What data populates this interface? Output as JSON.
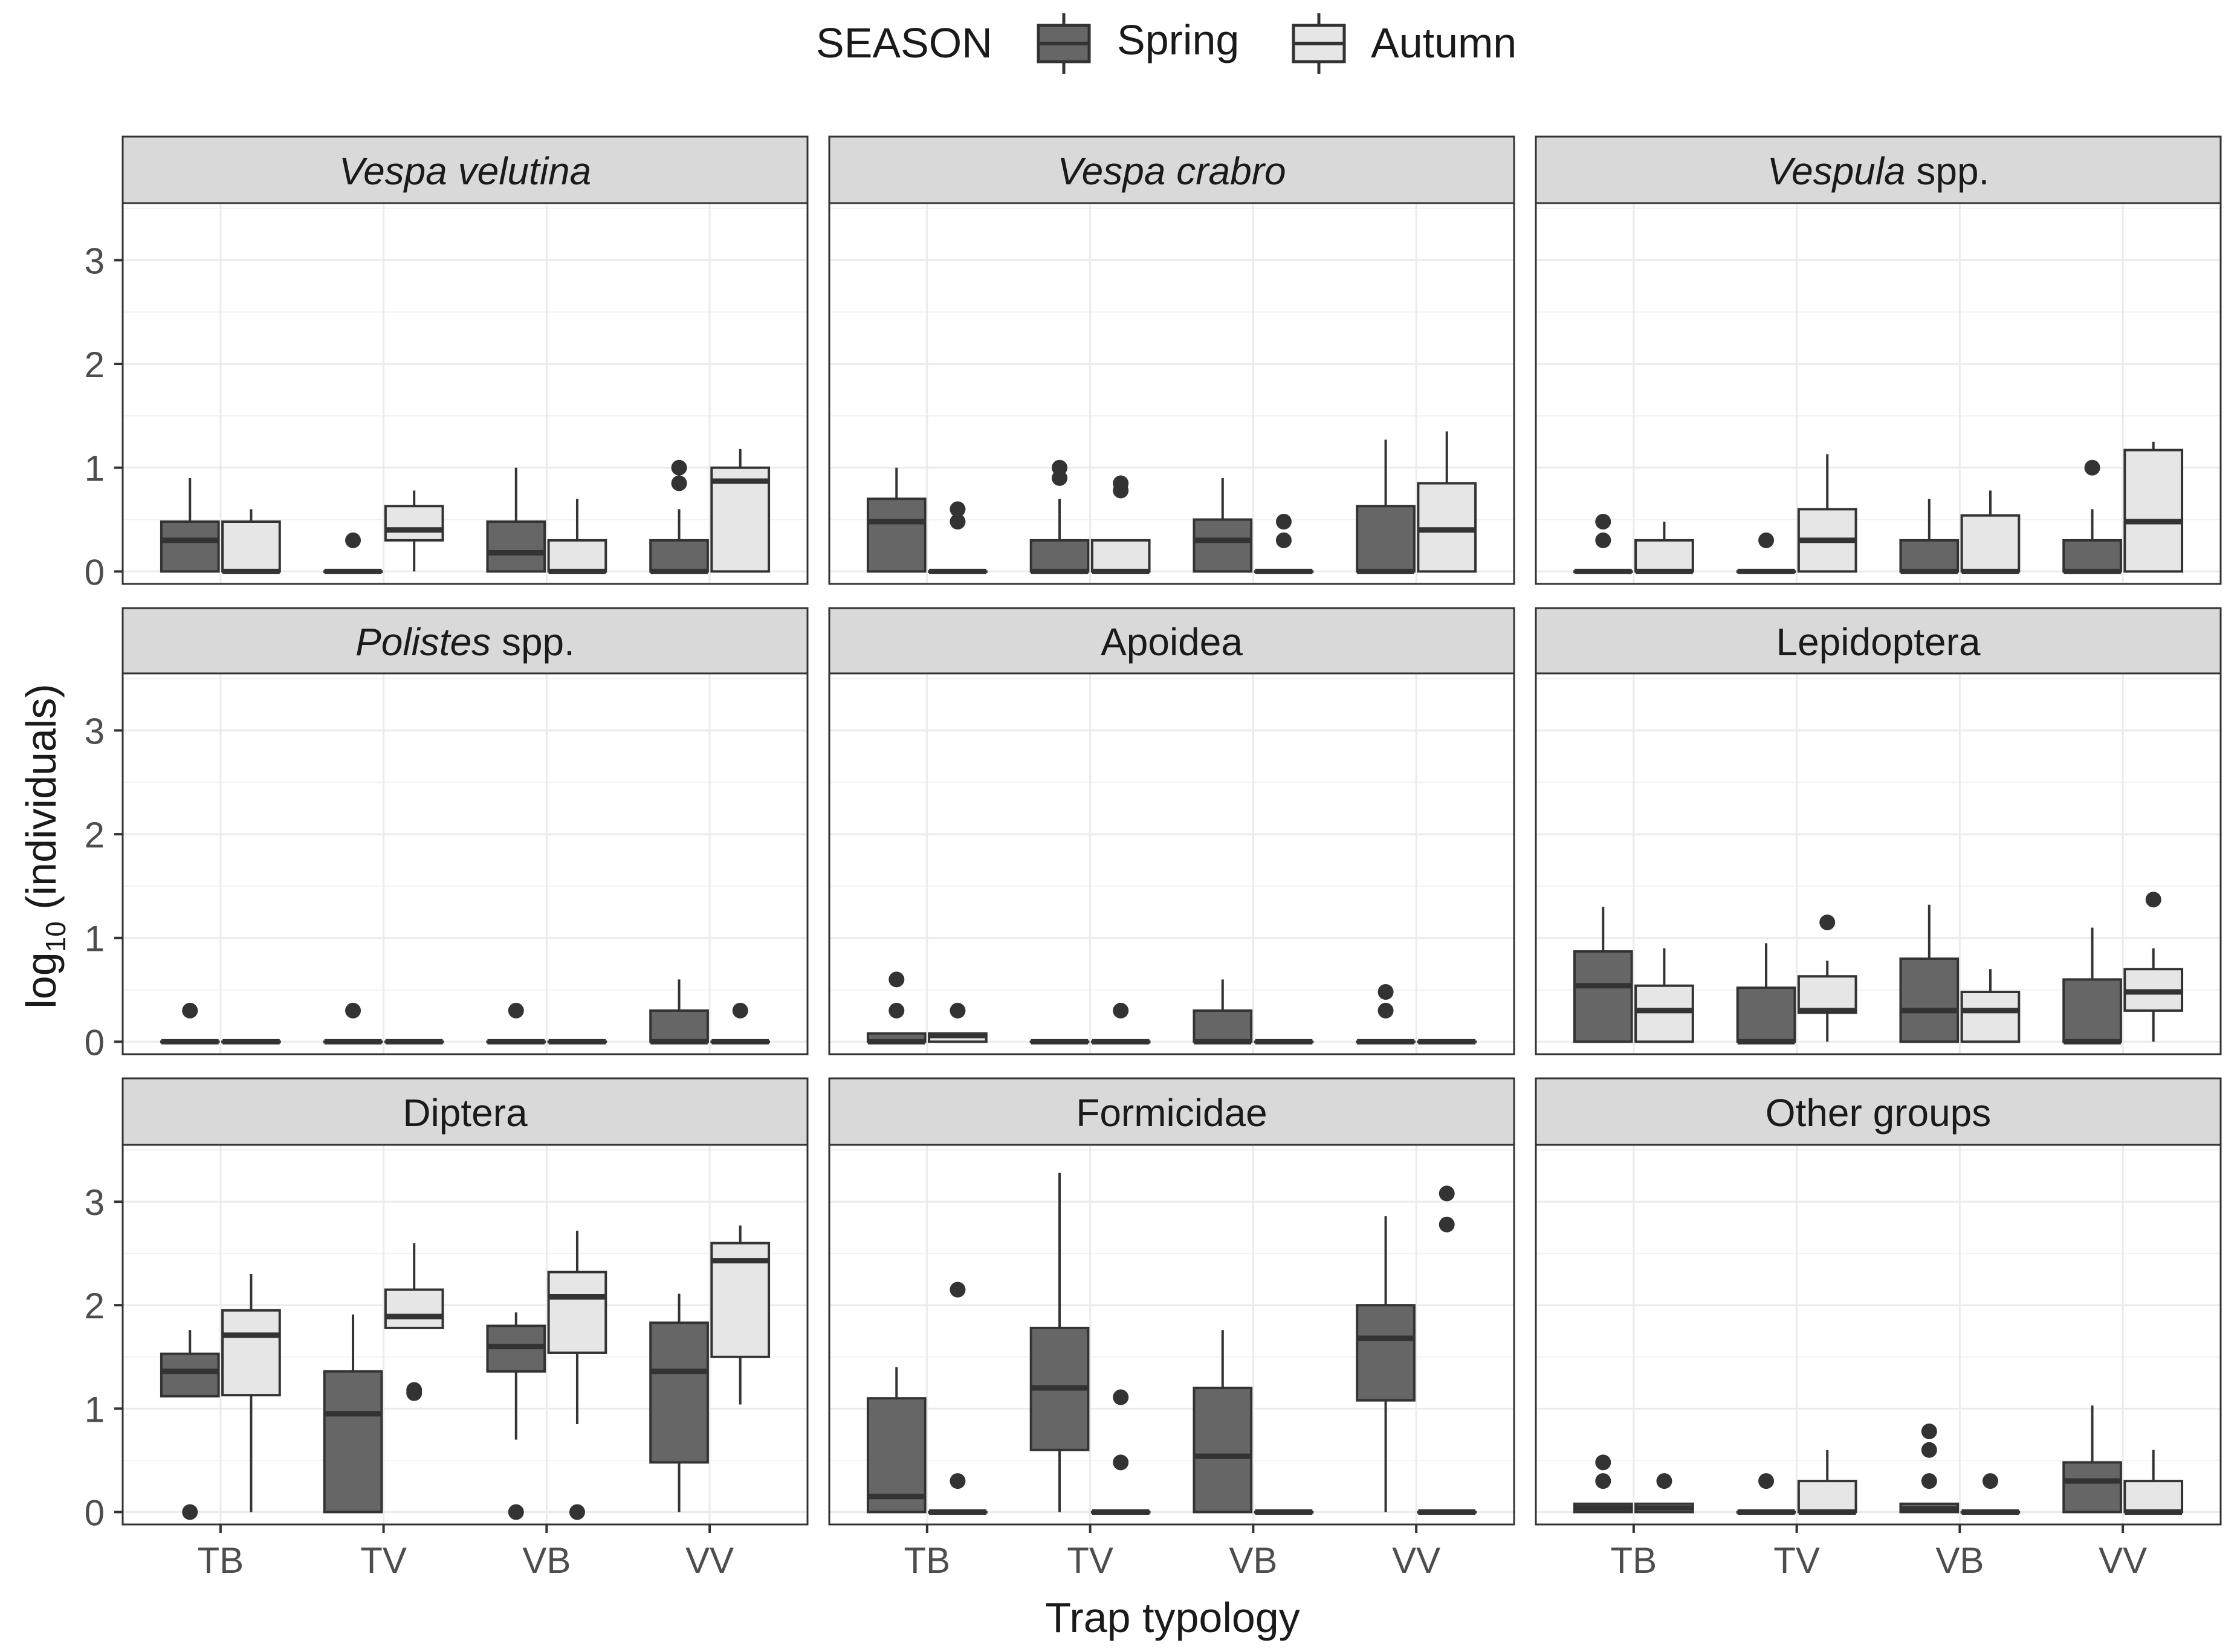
{
  "chart_data": {
    "type": "boxplot",
    "layout": "facet_wrap 3x3",
    "legend": {
      "title": "SEASON",
      "position": "top",
      "entries": [
        {
          "name": "Spring",
          "color": "#666666"
        },
        {
          "name": "Autumn",
          "color": "#e6e6e6"
        }
      ]
    },
    "xlabel": "Trap typology",
    "ylabel_main": "log",
    "ylabel_sub": "10",
    "ylabel_rest": " (individuals)",
    "categories": [
      "TB",
      "TV",
      "VB",
      "VV"
    ],
    "ylim": [
      -0.12,
      3.55
    ],
    "yticks": [
      0,
      1,
      2,
      3
    ],
    "grid": true,
    "facets": [
      {
        "title_italic": "Vespa velutina",
        "title_rest": "",
        "showX": false,
        "groups": [
          {
            "cat": "TB",
            "series": "Spring",
            "q1": 0,
            "med": 0.3,
            "q3": 0.48,
            "lo": 0,
            "hi": 0.9,
            "out": []
          },
          {
            "cat": "TB",
            "series": "Autumn",
            "q1": 0,
            "med": 0,
            "q3": 0.48,
            "lo": 0,
            "hi": 0.6,
            "out": []
          },
          {
            "cat": "TV",
            "series": "Spring",
            "q1": 0,
            "med": 0,
            "q3": 0,
            "lo": 0,
            "hi": 0,
            "out": [
              0.3
            ]
          },
          {
            "cat": "TV",
            "series": "Autumn",
            "q1": 0.3,
            "med": 0.4,
            "q3": 0.63,
            "lo": 0,
            "hi": 0.78,
            "out": []
          },
          {
            "cat": "VB",
            "series": "Spring",
            "q1": 0,
            "med": 0.18,
            "q3": 0.48,
            "lo": 0,
            "hi": 1.0,
            "out": []
          },
          {
            "cat": "VB",
            "series": "Autumn",
            "q1": 0,
            "med": 0,
            "q3": 0.3,
            "lo": 0,
            "hi": 0.7,
            "out": []
          },
          {
            "cat": "VV",
            "series": "Spring",
            "q1": 0,
            "med": 0,
            "q3": 0.3,
            "lo": 0,
            "hi": 0.6,
            "out": [
              0.85,
              1.0
            ]
          },
          {
            "cat": "VV",
            "series": "Autumn",
            "q1": 0,
            "med": 0.87,
            "q3": 1.0,
            "lo": 0,
            "hi": 1.18,
            "out": []
          }
        ]
      },
      {
        "title_italic": "Vespa crabro",
        "title_rest": "",
        "showX": false,
        "groups": [
          {
            "cat": "TB",
            "series": "Spring",
            "q1": 0,
            "med": 0.48,
            "q3": 0.7,
            "lo": 0,
            "hi": 1.0,
            "out": []
          },
          {
            "cat": "TB",
            "series": "Autumn",
            "q1": 0,
            "med": 0,
            "q3": 0,
            "lo": 0,
            "hi": 0,
            "out": [
              0.48,
              0.6
            ]
          },
          {
            "cat": "TV",
            "series": "Spring",
            "q1": 0,
            "med": 0,
            "q3": 0.3,
            "lo": 0,
            "hi": 0.7,
            "out": [
              0.9,
              1.0
            ]
          },
          {
            "cat": "TV",
            "series": "Autumn",
            "q1": 0,
            "med": 0,
            "q3": 0.3,
            "lo": 0,
            "hi": 0.3,
            "out": [
              0.78,
              0.85
            ]
          },
          {
            "cat": "VB",
            "series": "Spring",
            "q1": 0,
            "med": 0.3,
            "q3": 0.5,
            "lo": 0,
            "hi": 0.9,
            "out": []
          },
          {
            "cat": "VB",
            "series": "Autumn",
            "q1": 0,
            "med": 0,
            "q3": 0,
            "lo": 0,
            "hi": 0,
            "out": [
              0.3,
              0.48
            ]
          },
          {
            "cat": "VV",
            "series": "Spring",
            "q1": 0,
            "med": 0,
            "q3": 0.63,
            "lo": 0,
            "hi": 1.27,
            "out": []
          },
          {
            "cat": "VV",
            "series": "Autumn",
            "q1": 0,
            "med": 0.4,
            "q3": 0.85,
            "lo": 0,
            "hi": 1.35,
            "out": []
          }
        ]
      },
      {
        "title_italic": "Vespula",
        "title_rest": " spp.",
        "showX": false,
        "groups": [
          {
            "cat": "TB",
            "series": "Spring",
            "q1": 0,
            "med": 0,
            "q3": 0,
            "lo": 0,
            "hi": 0,
            "out": [
              0.3,
              0.48
            ]
          },
          {
            "cat": "TB",
            "series": "Autumn",
            "q1": 0,
            "med": 0,
            "q3": 0.3,
            "lo": 0,
            "hi": 0.48,
            "out": []
          },
          {
            "cat": "TV",
            "series": "Spring",
            "q1": 0,
            "med": 0,
            "q3": 0,
            "lo": 0,
            "hi": 0,
            "out": [
              0.3
            ]
          },
          {
            "cat": "TV",
            "series": "Autumn",
            "q1": 0,
            "med": 0.3,
            "q3": 0.6,
            "lo": 0,
            "hi": 1.13,
            "out": []
          },
          {
            "cat": "VB",
            "series": "Spring",
            "q1": 0,
            "med": 0,
            "q3": 0.3,
            "lo": 0,
            "hi": 0.7,
            "out": []
          },
          {
            "cat": "VB",
            "series": "Autumn",
            "q1": 0,
            "med": 0,
            "q3": 0.54,
            "lo": 0,
            "hi": 0.78,
            "out": []
          },
          {
            "cat": "VV",
            "series": "Spring",
            "q1": 0,
            "med": 0,
            "q3": 0.3,
            "lo": 0,
            "hi": 0.6,
            "out": [
              1.0
            ]
          },
          {
            "cat": "VV",
            "series": "Autumn",
            "q1": 0,
            "med": 0.48,
            "q3": 1.17,
            "lo": 0,
            "hi": 1.25,
            "out": []
          }
        ]
      },
      {
        "title_italic": "Polistes",
        "title_rest": " spp.",
        "showX": false,
        "groups": [
          {
            "cat": "TB",
            "series": "Spring",
            "q1": 0,
            "med": 0,
            "q3": 0,
            "lo": 0,
            "hi": 0,
            "out": [
              0.3
            ]
          },
          {
            "cat": "TB",
            "series": "Autumn",
            "q1": 0,
            "med": 0,
            "q3": 0,
            "lo": 0,
            "hi": 0,
            "out": []
          },
          {
            "cat": "TV",
            "series": "Spring",
            "q1": 0,
            "med": 0,
            "q3": 0,
            "lo": 0,
            "hi": 0,
            "out": [
              0.3
            ]
          },
          {
            "cat": "TV",
            "series": "Autumn",
            "q1": 0,
            "med": 0,
            "q3": 0,
            "lo": 0,
            "hi": 0,
            "out": []
          },
          {
            "cat": "VB",
            "series": "Spring",
            "q1": 0,
            "med": 0,
            "q3": 0,
            "lo": 0,
            "hi": 0,
            "out": [
              0.3
            ]
          },
          {
            "cat": "VB",
            "series": "Autumn",
            "q1": 0,
            "med": 0,
            "q3": 0,
            "lo": 0,
            "hi": 0,
            "out": []
          },
          {
            "cat": "VV",
            "series": "Spring",
            "q1": 0,
            "med": 0,
            "q3": 0.3,
            "lo": 0,
            "hi": 0.6,
            "out": []
          },
          {
            "cat": "VV",
            "series": "Autumn",
            "q1": 0,
            "med": 0,
            "q3": 0,
            "lo": 0,
            "hi": 0,
            "out": [
              0.3
            ]
          }
        ]
      },
      {
        "title_italic": "",
        "title_rest": "Apoidea",
        "showX": false,
        "groups": [
          {
            "cat": "TB",
            "series": "Spring",
            "q1": 0,
            "med": 0,
            "q3": 0.08,
            "lo": 0,
            "hi": 0.08,
            "out": [
              0.3,
              0.6
            ]
          },
          {
            "cat": "TB",
            "series": "Autumn",
            "q1": 0,
            "med": 0.06,
            "q3": 0.08,
            "lo": 0,
            "hi": 0.08,
            "out": [
              0.3
            ]
          },
          {
            "cat": "TV",
            "series": "Spring",
            "q1": 0,
            "med": 0,
            "q3": 0,
            "lo": 0,
            "hi": 0,
            "out": []
          },
          {
            "cat": "TV",
            "series": "Autumn",
            "q1": 0,
            "med": 0,
            "q3": 0,
            "lo": 0,
            "hi": 0,
            "out": [
              0.3
            ]
          },
          {
            "cat": "VB",
            "series": "Spring",
            "q1": 0,
            "med": 0,
            "q3": 0.3,
            "lo": 0,
            "hi": 0.6,
            "out": []
          },
          {
            "cat": "VB",
            "series": "Autumn",
            "q1": 0,
            "med": 0,
            "q3": 0,
            "lo": 0,
            "hi": 0,
            "out": []
          },
          {
            "cat": "VV",
            "series": "Spring",
            "q1": 0,
            "med": 0,
            "q3": 0,
            "lo": 0,
            "hi": 0,
            "out": [
              0.3,
              0.48
            ]
          },
          {
            "cat": "VV",
            "series": "Autumn",
            "q1": 0,
            "med": 0,
            "q3": 0,
            "lo": 0,
            "hi": 0,
            "out": []
          }
        ]
      },
      {
        "title_italic": "",
        "title_rest": "Lepidoptera",
        "showX": false,
        "groups": [
          {
            "cat": "TB",
            "series": "Spring",
            "q1": 0,
            "med": 0.54,
            "q3": 0.87,
            "lo": 0,
            "hi": 1.3,
            "out": []
          },
          {
            "cat": "TB",
            "series": "Autumn",
            "q1": 0,
            "med": 0.3,
            "q3": 0.54,
            "lo": 0,
            "hi": 0.9,
            "out": []
          },
          {
            "cat": "TV",
            "series": "Spring",
            "q1": 0,
            "med": 0,
            "q3": 0.52,
            "lo": 0,
            "hi": 0.95,
            "out": []
          },
          {
            "cat": "TV",
            "series": "Autumn",
            "q1": 0.28,
            "med": 0.3,
            "q3": 0.63,
            "lo": 0,
            "hi": 0.78,
            "out": [
              1.15
            ]
          },
          {
            "cat": "VB",
            "series": "Spring",
            "q1": 0,
            "med": 0.3,
            "q3": 0.8,
            "lo": 0,
            "hi": 1.32,
            "out": []
          },
          {
            "cat": "VB",
            "series": "Autumn",
            "q1": 0,
            "med": 0.3,
            "q3": 0.48,
            "lo": 0,
            "hi": 0.7,
            "out": []
          },
          {
            "cat": "VV",
            "series": "Spring",
            "q1": 0,
            "med": 0,
            "q3": 0.6,
            "lo": 0,
            "hi": 1.1,
            "out": []
          },
          {
            "cat": "VV",
            "series": "Autumn",
            "q1": 0.3,
            "med": 0.48,
            "q3": 0.7,
            "lo": 0,
            "hi": 0.9,
            "out": [
              1.37
            ]
          }
        ]
      },
      {
        "title_italic": "",
        "title_rest": "Diptera",
        "showX": true,
        "groups": [
          {
            "cat": "TB",
            "series": "Spring",
            "q1": 1.12,
            "med": 1.36,
            "q3": 1.53,
            "lo": 1.12,
            "hi": 1.76,
            "out": [
              0
            ]
          },
          {
            "cat": "TB",
            "series": "Autumn",
            "q1": 1.13,
            "med": 1.71,
            "q3": 1.95,
            "lo": 0,
            "hi": 2.3,
            "out": []
          },
          {
            "cat": "TV",
            "series": "Spring",
            "q1": 0,
            "med": 0.95,
            "q3": 1.36,
            "lo": 0,
            "hi": 1.91,
            "out": []
          },
          {
            "cat": "TV",
            "series": "Autumn",
            "q1": 1.78,
            "med": 1.89,
            "q3": 2.15,
            "lo": 1.78,
            "hi": 2.6,
            "out": [
              1.15,
              1.18
            ]
          },
          {
            "cat": "VB",
            "series": "Spring",
            "q1": 1.36,
            "med": 1.6,
            "q3": 1.8,
            "lo": 0.7,
            "hi": 1.93,
            "out": [
              0
            ]
          },
          {
            "cat": "VB",
            "series": "Autumn",
            "q1": 1.54,
            "med": 2.08,
            "q3": 2.32,
            "lo": 0.85,
            "hi": 2.72,
            "out": [
              0
            ]
          },
          {
            "cat": "VV",
            "series": "Spring",
            "q1": 0.48,
            "med": 1.36,
            "q3": 1.83,
            "lo": 0,
            "hi": 2.11,
            "out": []
          },
          {
            "cat": "VV",
            "series": "Autumn",
            "q1": 1.5,
            "med": 2.43,
            "q3": 2.6,
            "lo": 1.04,
            "hi": 2.77,
            "out": []
          }
        ]
      },
      {
        "title_italic": "",
        "title_rest": "Formicidae",
        "showX": true,
        "groups": [
          {
            "cat": "TB",
            "series": "Spring",
            "q1": 0,
            "med": 0.15,
            "q3": 1.1,
            "lo": 0,
            "hi": 1.4,
            "out": []
          },
          {
            "cat": "TB",
            "series": "Autumn",
            "q1": 0,
            "med": 0,
            "q3": 0,
            "lo": 0,
            "hi": 0,
            "out": [
              0.3,
              2.15
            ]
          },
          {
            "cat": "TV",
            "series": "Spring",
            "q1": 0.6,
            "med": 1.2,
            "q3": 1.78,
            "lo": 0,
            "hi": 3.28,
            "out": []
          },
          {
            "cat": "TV",
            "series": "Autumn",
            "q1": 0,
            "med": 0,
            "q3": 0,
            "lo": 0,
            "hi": 0,
            "out": [
              0.48,
              1.11
            ]
          },
          {
            "cat": "VB",
            "series": "Spring",
            "q1": 0,
            "med": 0.54,
            "q3": 1.2,
            "lo": 0,
            "hi": 1.76,
            "out": []
          },
          {
            "cat": "VB",
            "series": "Autumn",
            "q1": 0,
            "med": 0,
            "q3": 0,
            "lo": 0,
            "hi": 0,
            "out": []
          },
          {
            "cat": "VV",
            "series": "Spring",
            "q1": 1.08,
            "med": 1.68,
            "q3": 2.0,
            "lo": 0,
            "hi": 2.86,
            "out": []
          },
          {
            "cat": "VV",
            "series": "Autumn",
            "q1": 0,
            "med": 0,
            "q3": 0,
            "lo": 0,
            "hi": 0,
            "out": [
              2.78,
              3.08
            ]
          }
        ]
      },
      {
        "title_italic": "",
        "title_rest": "Other groups",
        "showX": true,
        "groups": [
          {
            "cat": "TB",
            "series": "Spring",
            "q1": 0,
            "med": 0.04,
            "q3": 0.08,
            "lo": 0,
            "hi": 0.08,
            "out": [
              0.3,
              0.48
            ]
          },
          {
            "cat": "TB",
            "series": "Autumn",
            "q1": 0,
            "med": 0.04,
            "q3": 0.08,
            "lo": 0,
            "hi": 0.08,
            "out": [
              0.3
            ]
          },
          {
            "cat": "TV",
            "series": "Spring",
            "q1": 0,
            "med": 0,
            "q3": 0,
            "lo": 0,
            "hi": 0,
            "out": [
              0.3
            ]
          },
          {
            "cat": "TV",
            "series": "Autumn",
            "q1": 0,
            "med": 0,
            "q3": 0.3,
            "lo": 0,
            "hi": 0.6,
            "out": []
          },
          {
            "cat": "VB",
            "series": "Spring",
            "q1": 0,
            "med": 0.03,
            "q3": 0.08,
            "lo": 0,
            "hi": 0.08,
            "out": [
              0.3,
              0.6,
              0.78
            ]
          },
          {
            "cat": "VB",
            "series": "Autumn",
            "q1": 0,
            "med": 0,
            "q3": 0,
            "lo": 0,
            "hi": 0,
            "out": [
              0.3
            ]
          },
          {
            "cat": "VV",
            "series": "Spring",
            "q1": 0,
            "med": 0.3,
            "q3": 0.48,
            "lo": 0,
            "hi": 1.03,
            "out": []
          },
          {
            "cat": "VV",
            "series": "Autumn",
            "q1": 0,
            "med": 0,
            "q3": 0.3,
            "lo": 0,
            "hi": 0.6,
            "out": []
          }
        ]
      }
    ]
  }
}
